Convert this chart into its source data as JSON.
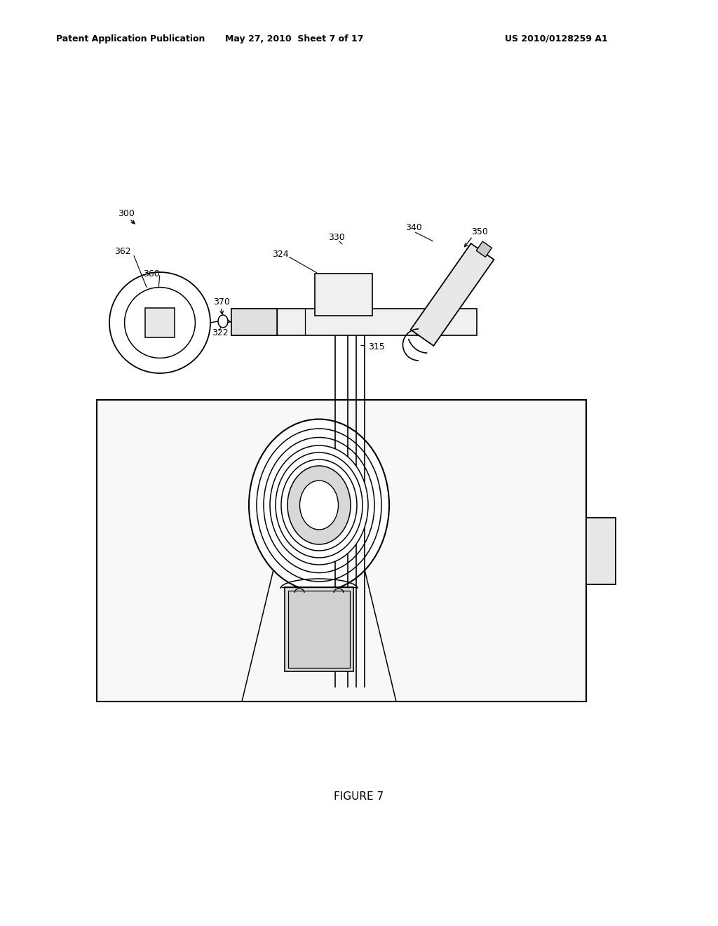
{
  "background_color": "#ffffff",
  "header_left": "Patent Application Publication",
  "header_center": "May 27, 2010  Sheet 7 of 17",
  "header_right": "US 2010/0128259 A1",
  "figure_label": "FIGURE 7"
}
